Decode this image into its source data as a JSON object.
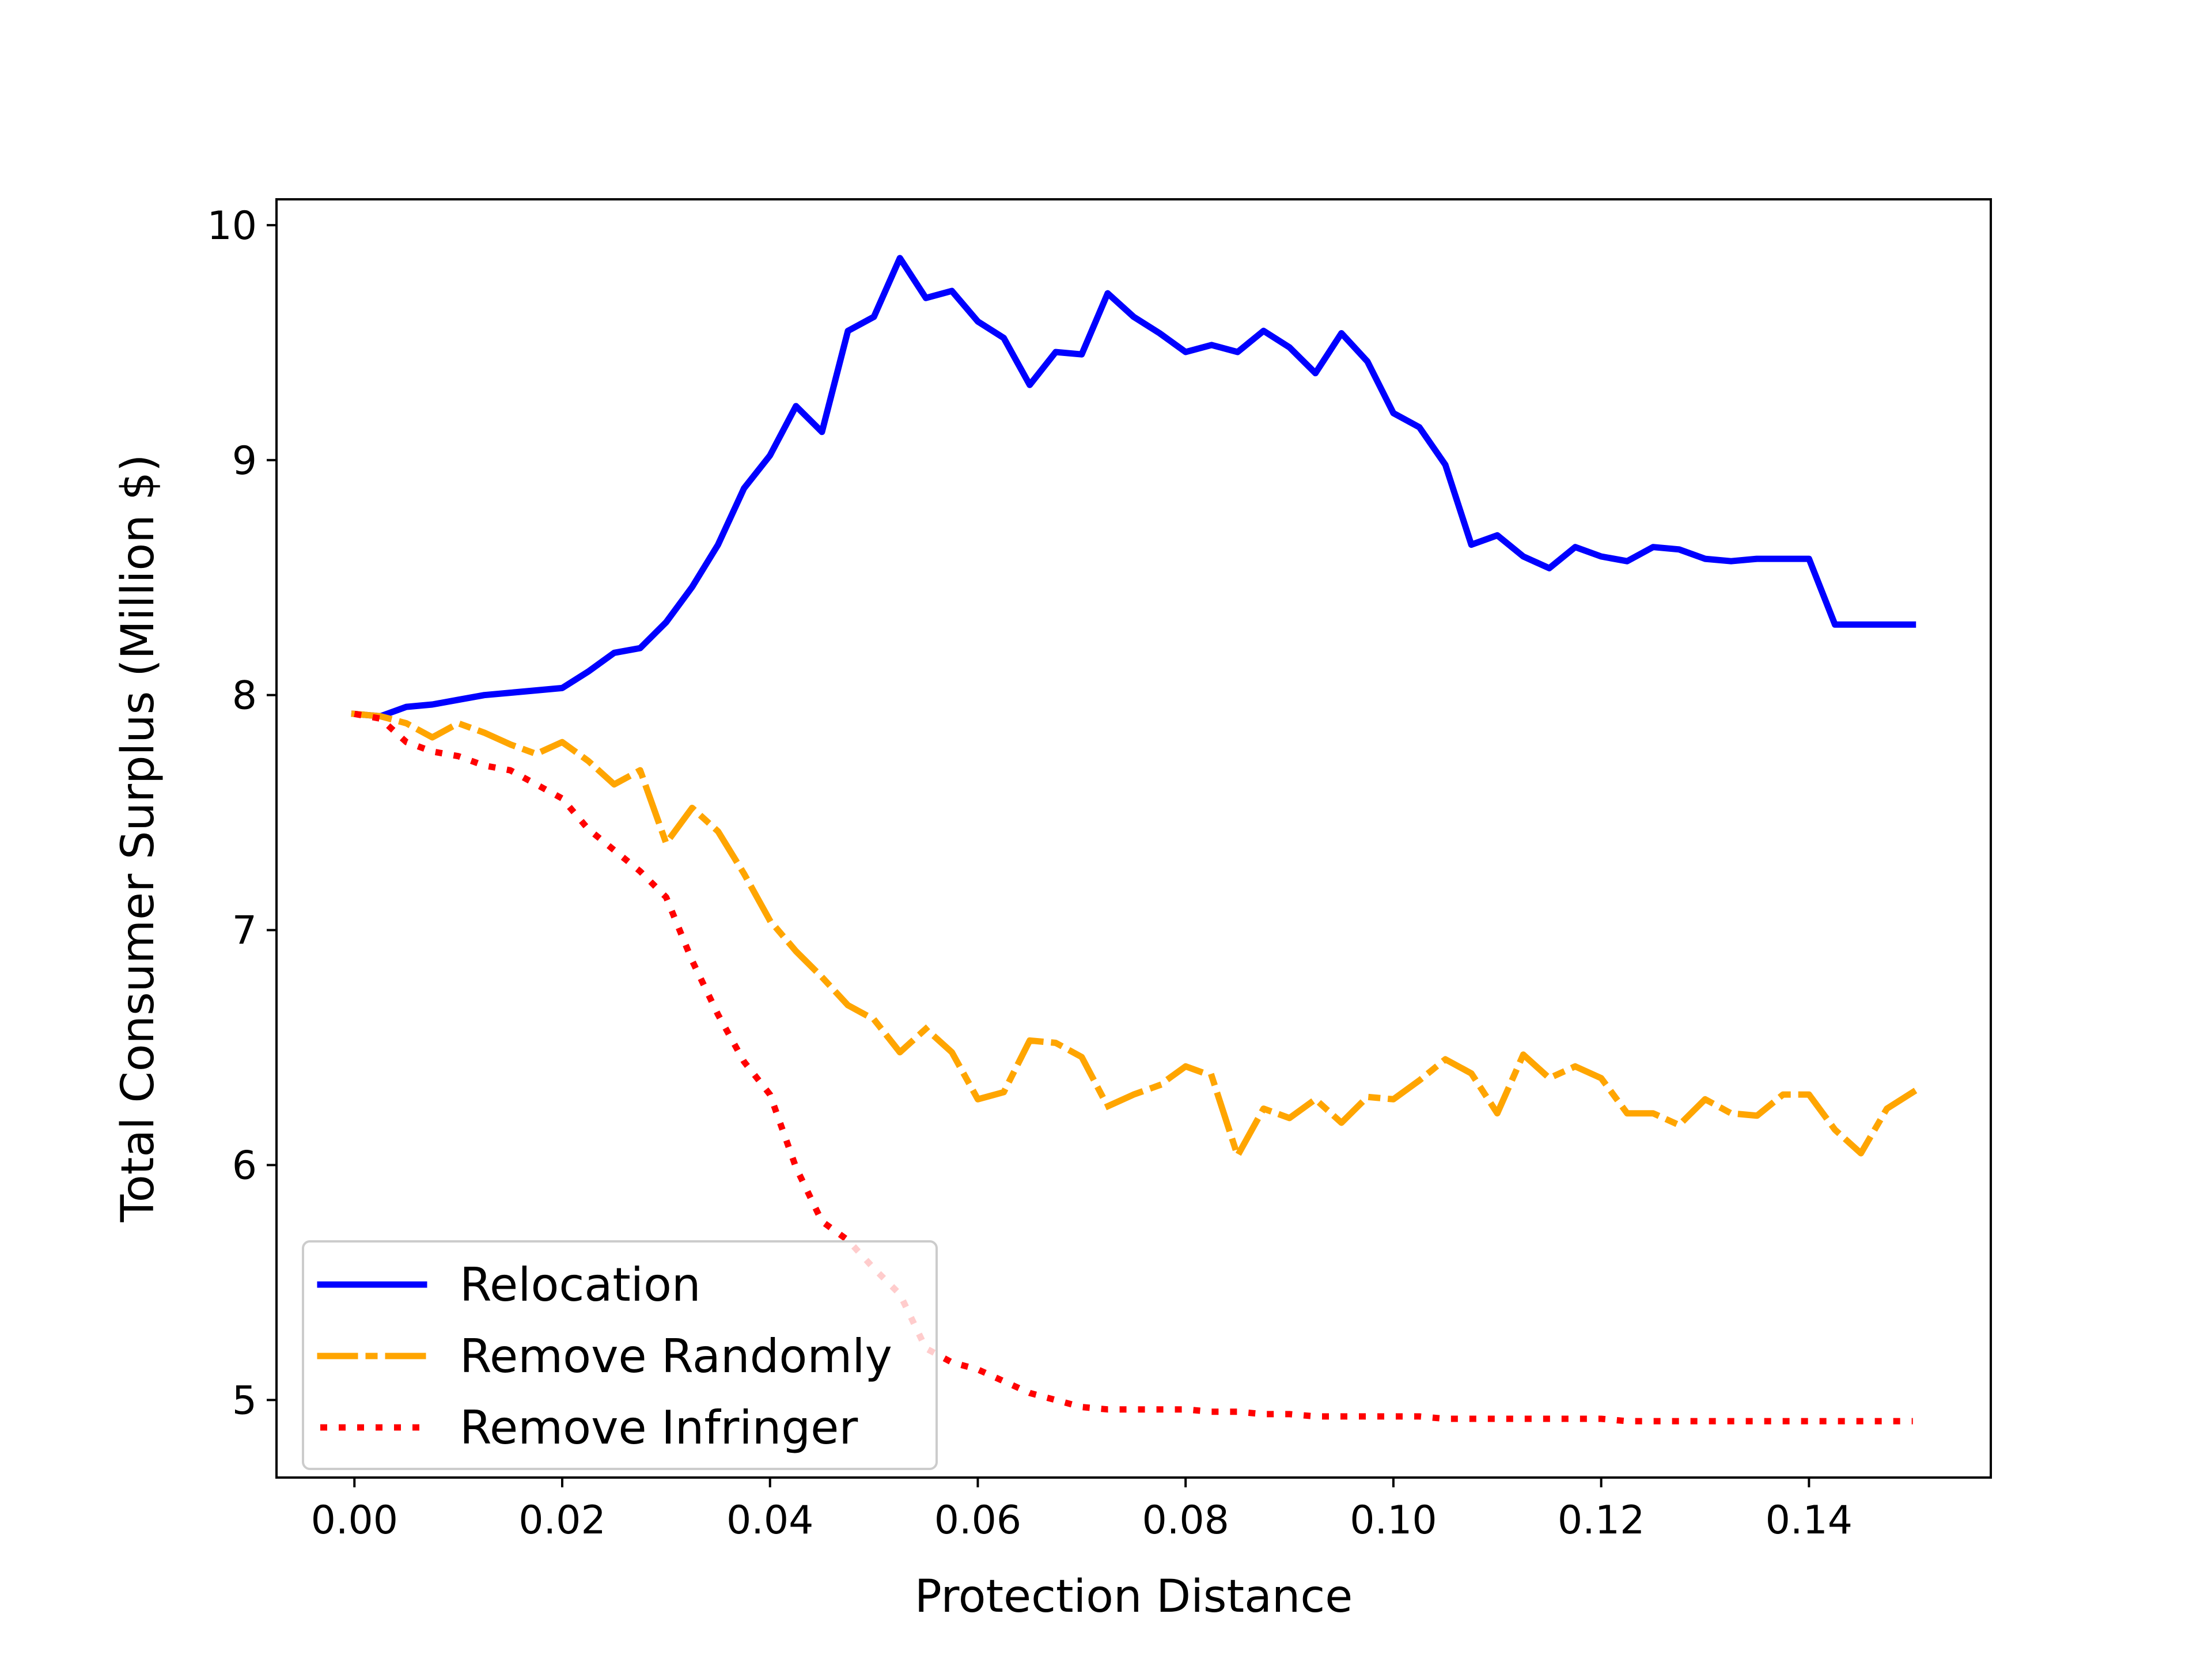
{
  "chart_data": {
    "type": "line",
    "title": "",
    "xlabel": "Protection Distance",
    "ylabel": "Total Consumer Surplus (Million $)",
    "xlim": [
      -0.0075,
      0.1575
    ],
    "ylim": [
      4.67,
      10.11
    ],
    "xticks": [
      0.0,
      0.02,
      0.04,
      0.06,
      0.08,
      0.1,
      0.12,
      0.14
    ],
    "xtick_labels": [
      "0.00",
      "0.02",
      "0.04",
      "0.06",
      "0.08",
      "0.10",
      "0.12",
      "0.14"
    ],
    "yticks": [
      5,
      6,
      7,
      8,
      9,
      10
    ],
    "ytick_labels": [
      "5",
      "6",
      "7",
      "8",
      "9",
      "10"
    ],
    "grid": false,
    "legend_position": "lower-left",
    "x": [
      0.0,
      0.0025,
      0.005,
      0.0075,
      0.01,
      0.0125,
      0.015,
      0.0175,
      0.02,
      0.0225,
      0.025,
      0.0275,
      0.03,
      0.0325,
      0.035,
      0.0375,
      0.04,
      0.0425,
      0.045,
      0.0475,
      0.05,
      0.0525,
      0.055,
      0.0575,
      0.06,
      0.0625,
      0.065,
      0.0675,
      0.07,
      0.0725,
      0.075,
      0.0775,
      0.08,
      0.0825,
      0.085,
      0.0875,
      0.09,
      0.0925,
      0.095,
      0.0975,
      0.1,
      0.1025,
      0.105,
      0.1075,
      0.11,
      0.1125,
      0.115,
      0.1175,
      0.12,
      0.1225,
      0.125,
      0.1275,
      0.13,
      0.1325,
      0.135,
      0.1375,
      0.14,
      0.1425,
      0.145,
      0.1475,
      0.15
    ],
    "series": [
      {
        "name": "Relocation",
        "color": "#0000ff",
        "style": "solid",
        "values": [
          7.92,
          7.91,
          7.95,
          7.96,
          7.98,
          8.0,
          8.01,
          8.02,
          8.03,
          8.1,
          8.18,
          8.2,
          8.31,
          8.46,
          8.64,
          8.88,
          9.02,
          9.23,
          9.12,
          9.55,
          9.61,
          9.86,
          9.69,
          9.72,
          9.59,
          9.52,
          9.32,
          9.46,
          9.45,
          9.71,
          9.61,
          9.54,
          9.46,
          9.49,
          9.46,
          9.55,
          9.48,
          9.37,
          9.54,
          9.42,
          9.2,
          9.14,
          8.98,
          8.64,
          8.68,
          8.59,
          8.54,
          8.63,
          8.59,
          8.57,
          8.63,
          8.62,
          8.58,
          8.57,
          8.58,
          8.58,
          8.58,
          8.3,
          8.3,
          8.3,
          8.3
        ]
      },
      {
        "name": "Remove Randomly",
        "color": "#ffa500",
        "style": "dashdot",
        "values": [
          7.92,
          7.91,
          7.88,
          7.82,
          7.88,
          7.84,
          7.79,
          7.75,
          7.8,
          7.72,
          7.62,
          7.68,
          7.37,
          7.52,
          7.42,
          7.24,
          7.04,
          6.91,
          6.8,
          6.68,
          6.62,
          6.48,
          6.58,
          6.48,
          6.28,
          6.31,
          6.53,
          6.52,
          6.46,
          6.25,
          6.3,
          6.34,
          6.42,
          6.38,
          6.04,
          6.24,
          6.2,
          6.28,
          6.18,
          6.29,
          6.28,
          6.36,
          6.45,
          6.39,
          6.22,
          6.47,
          6.37,
          6.42,
          6.37,
          6.22,
          6.22,
          6.17,
          6.28,
          6.22,
          6.21,
          6.3,
          6.3,
          6.15,
          6.05,
          6.24,
          6.31
        ]
      },
      {
        "name": "Remove Infringer",
        "color": "#ff0000",
        "style": "dotted",
        "values": [
          7.92,
          7.9,
          7.8,
          7.76,
          7.74,
          7.7,
          7.68,
          7.62,
          7.56,
          7.43,
          7.34,
          7.25,
          7.14,
          6.87,
          6.64,
          6.44,
          6.3,
          5.99,
          5.76,
          5.68,
          5.56,
          5.45,
          5.22,
          5.16,
          5.13,
          5.08,
          5.03,
          5.0,
          4.97,
          4.96,
          4.96,
          4.96,
          4.96,
          4.95,
          4.95,
          4.94,
          4.94,
          4.93,
          4.93,
          4.93,
          4.93,
          4.93,
          4.92,
          4.92,
          4.92,
          4.92,
          4.92,
          4.92,
          4.92,
          4.91,
          4.91,
          4.91,
          4.91,
          4.91,
          4.91,
          4.91,
          4.91,
          4.91,
          4.91,
          4.91,
          4.91
        ]
      }
    ]
  }
}
